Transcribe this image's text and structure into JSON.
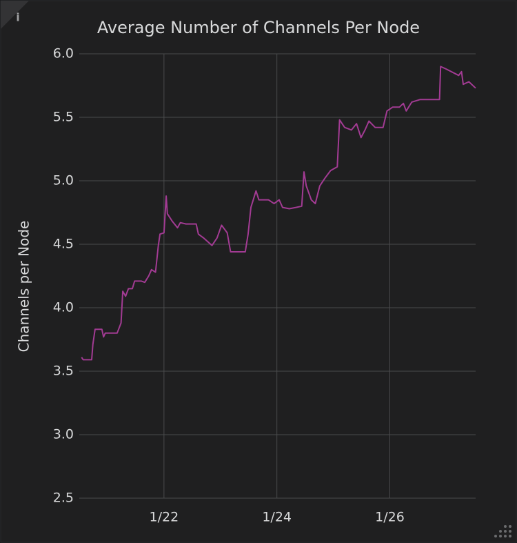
{
  "chart_data": {
    "type": "line",
    "title": "Average Number of Channels Per Node",
    "y_label": "Channels per Node",
    "x": [
      20.54,
      20.57,
      20.72,
      20.74,
      20.78,
      20.9,
      20.93,
      20.96,
      21.17,
      21.24,
      21.27,
      21.32,
      21.37,
      21.44,
      21.48,
      21.6,
      21.66,
      21.73,
      21.78,
      21.85,
      21.9,
      21.93,
      22.0,
      22.04,
      22.06,
      22.15,
      22.24,
      22.29,
      22.39,
      22.57,
      22.61,
      22.7,
      22.85,
      22.94,
      23.02,
      23.12,
      23.18,
      23.44,
      23.49,
      23.54,
      23.63,
      23.68,
      23.85,
      23.95,
      24.04,
      24.1,
      24.22,
      24.34,
      24.44,
      24.48,
      24.52,
      24.61,
      24.68,
      24.76,
      24.85,
      24.95,
      25.07,
      25.11,
      25.2,
      25.32,
      25.41,
      25.49,
      25.56,
      25.63,
      25.74,
      25.88,
      25.95,
      26.05,
      26.17,
      26.24,
      26.29,
      26.39,
      26.54,
      26.72,
      26.88,
      26.9,
      27.0,
      27.22,
      27.27,
      27.3,
      27.4,
      27.52
    ],
    "series": [
      {
        "name": "Channels per Node",
        "color": "#a23b93",
        "values": [
          3.61,
          3.59,
          3.59,
          3.71,
          3.83,
          3.83,
          3.77,
          3.8,
          3.8,
          3.88,
          4.13,
          4.09,
          4.15,
          4.15,
          4.21,
          4.21,
          4.2,
          4.25,
          4.3,
          4.28,
          4.49,
          4.58,
          4.59,
          4.88,
          4.74,
          4.68,
          4.63,
          4.67,
          4.66,
          4.66,
          4.58,
          4.55,
          4.49,
          4.55,
          4.65,
          4.59,
          4.44,
          4.44,
          4.58,
          4.79,
          4.92,
          4.85,
          4.85,
          4.82,
          4.85,
          4.79,
          4.78,
          4.79,
          4.8,
          5.07,
          4.96,
          4.85,
          4.82,
          4.96,
          5.02,
          5.08,
          5.11,
          5.48,
          5.42,
          5.4,
          5.45,
          5.34,
          5.4,
          5.47,
          5.42,
          5.42,
          5.55,
          5.58,
          5.58,
          5.61,
          5.55,
          5.62,
          5.64,
          5.64,
          5.64,
          5.9,
          5.88,
          5.83,
          5.86,
          5.76,
          5.78,
          5.73
        ]
      }
    ],
    "xlim": [
      20.5,
      27.52
    ],
    "xticks": [
      {
        "value": 22,
        "label": "1/22"
      },
      {
        "value": 24,
        "label": "1/24"
      },
      {
        "value": 26,
        "label": "1/26"
      }
    ],
    "ylim": [
      2.5,
      6.0
    ],
    "yticks": [
      2.5,
      {
        "value": 3,
        "label": "3.0"
      },
      3.5,
      {
        "value": 4,
        "label": "4.0"
      },
      4.5,
      {
        "value": 5,
        "label": "5.0"
      },
      5.5,
      {
        "value": 6,
        "label": "6.0"
      }
    ],
    "grid": true
  }
}
